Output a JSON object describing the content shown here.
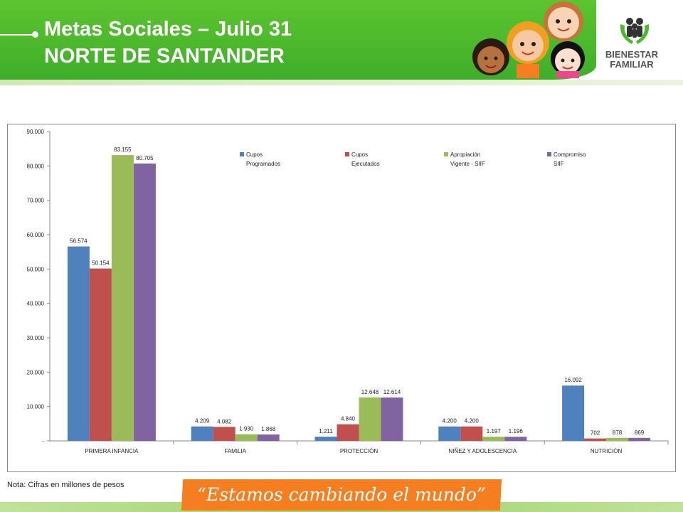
{
  "header": {
    "title_line1": "Metas Sociales – Julio 31",
    "title_line2": "NORTE DE SANTANDER",
    "logo_line1": "BIENESTAR",
    "logo_line2": "FAMILIAR",
    "green": "#4db82c"
  },
  "note": "Nota: Cifras en millones de pesos",
  "slogan": "“Estamos cambiando el mundo”",
  "chart_data": {
    "type": "bar",
    "categories": [
      "PRIMERA INFANCIA",
      "FAMILIA",
      "PROTECCIÓN",
      "NIÑEZ Y ADOLESCENCIA",
      "NUTRICIÓN"
    ],
    "series": [
      {
        "name": "Cupos Programados",
        "legend_lines": [
          "Cupos",
          "Programados"
        ],
        "color": "#4f81bd",
        "values": [
          56574,
          4209,
          1211,
          4200,
          16092
        ],
        "labels": [
          "56.574",
          "4.209",
          "1.211",
          "4.200",
          "16.092"
        ]
      },
      {
        "name": "Cupos Ejecutados",
        "legend_lines": [
          "Cupos",
          "Ejecutados"
        ],
        "color": "#c0504d",
        "values": [
          50154,
          4082,
          4840,
          4200,
          702
        ],
        "labels": [
          "50.154",
          "4.082",
          "4.840",
          "4.200",
          "702"
        ]
      },
      {
        "name": "Apropiación Vigente - SIIF",
        "legend_lines": [
          "Apropiación",
          "Vigente - SIIF"
        ],
        "color": "#9bbb59",
        "values": [
          83155,
          1930,
          12648,
          1197,
          878
        ],
        "labels": [
          "83.155",
          "1.930",
          "12.648",
          "1.197",
          "878"
        ]
      },
      {
        "name": "Compromiso SIIF",
        "legend_lines": [
          "Compromiso",
          "SIIF"
        ],
        "color": "#8064a2",
        "values": [
          80705,
          1868,
          12614,
          1196,
          869
        ],
        "labels": [
          "80.705",
          "1.868",
          "12.614",
          "1.196",
          "869"
        ]
      }
    ],
    "yticks": [
      0,
      10000,
      20000,
      30000,
      40000,
      50000,
      60000,
      70000,
      80000,
      90000
    ],
    "ytick_labels": [
      "-",
      "10.000",
      "20.000",
      "30.000",
      "40.000",
      "50.000",
      "60.000",
      "70.000",
      "80.000",
      "90.000"
    ],
    "ylim": [
      0,
      90000
    ],
    "legend_position": "top",
    "grid": false
  }
}
